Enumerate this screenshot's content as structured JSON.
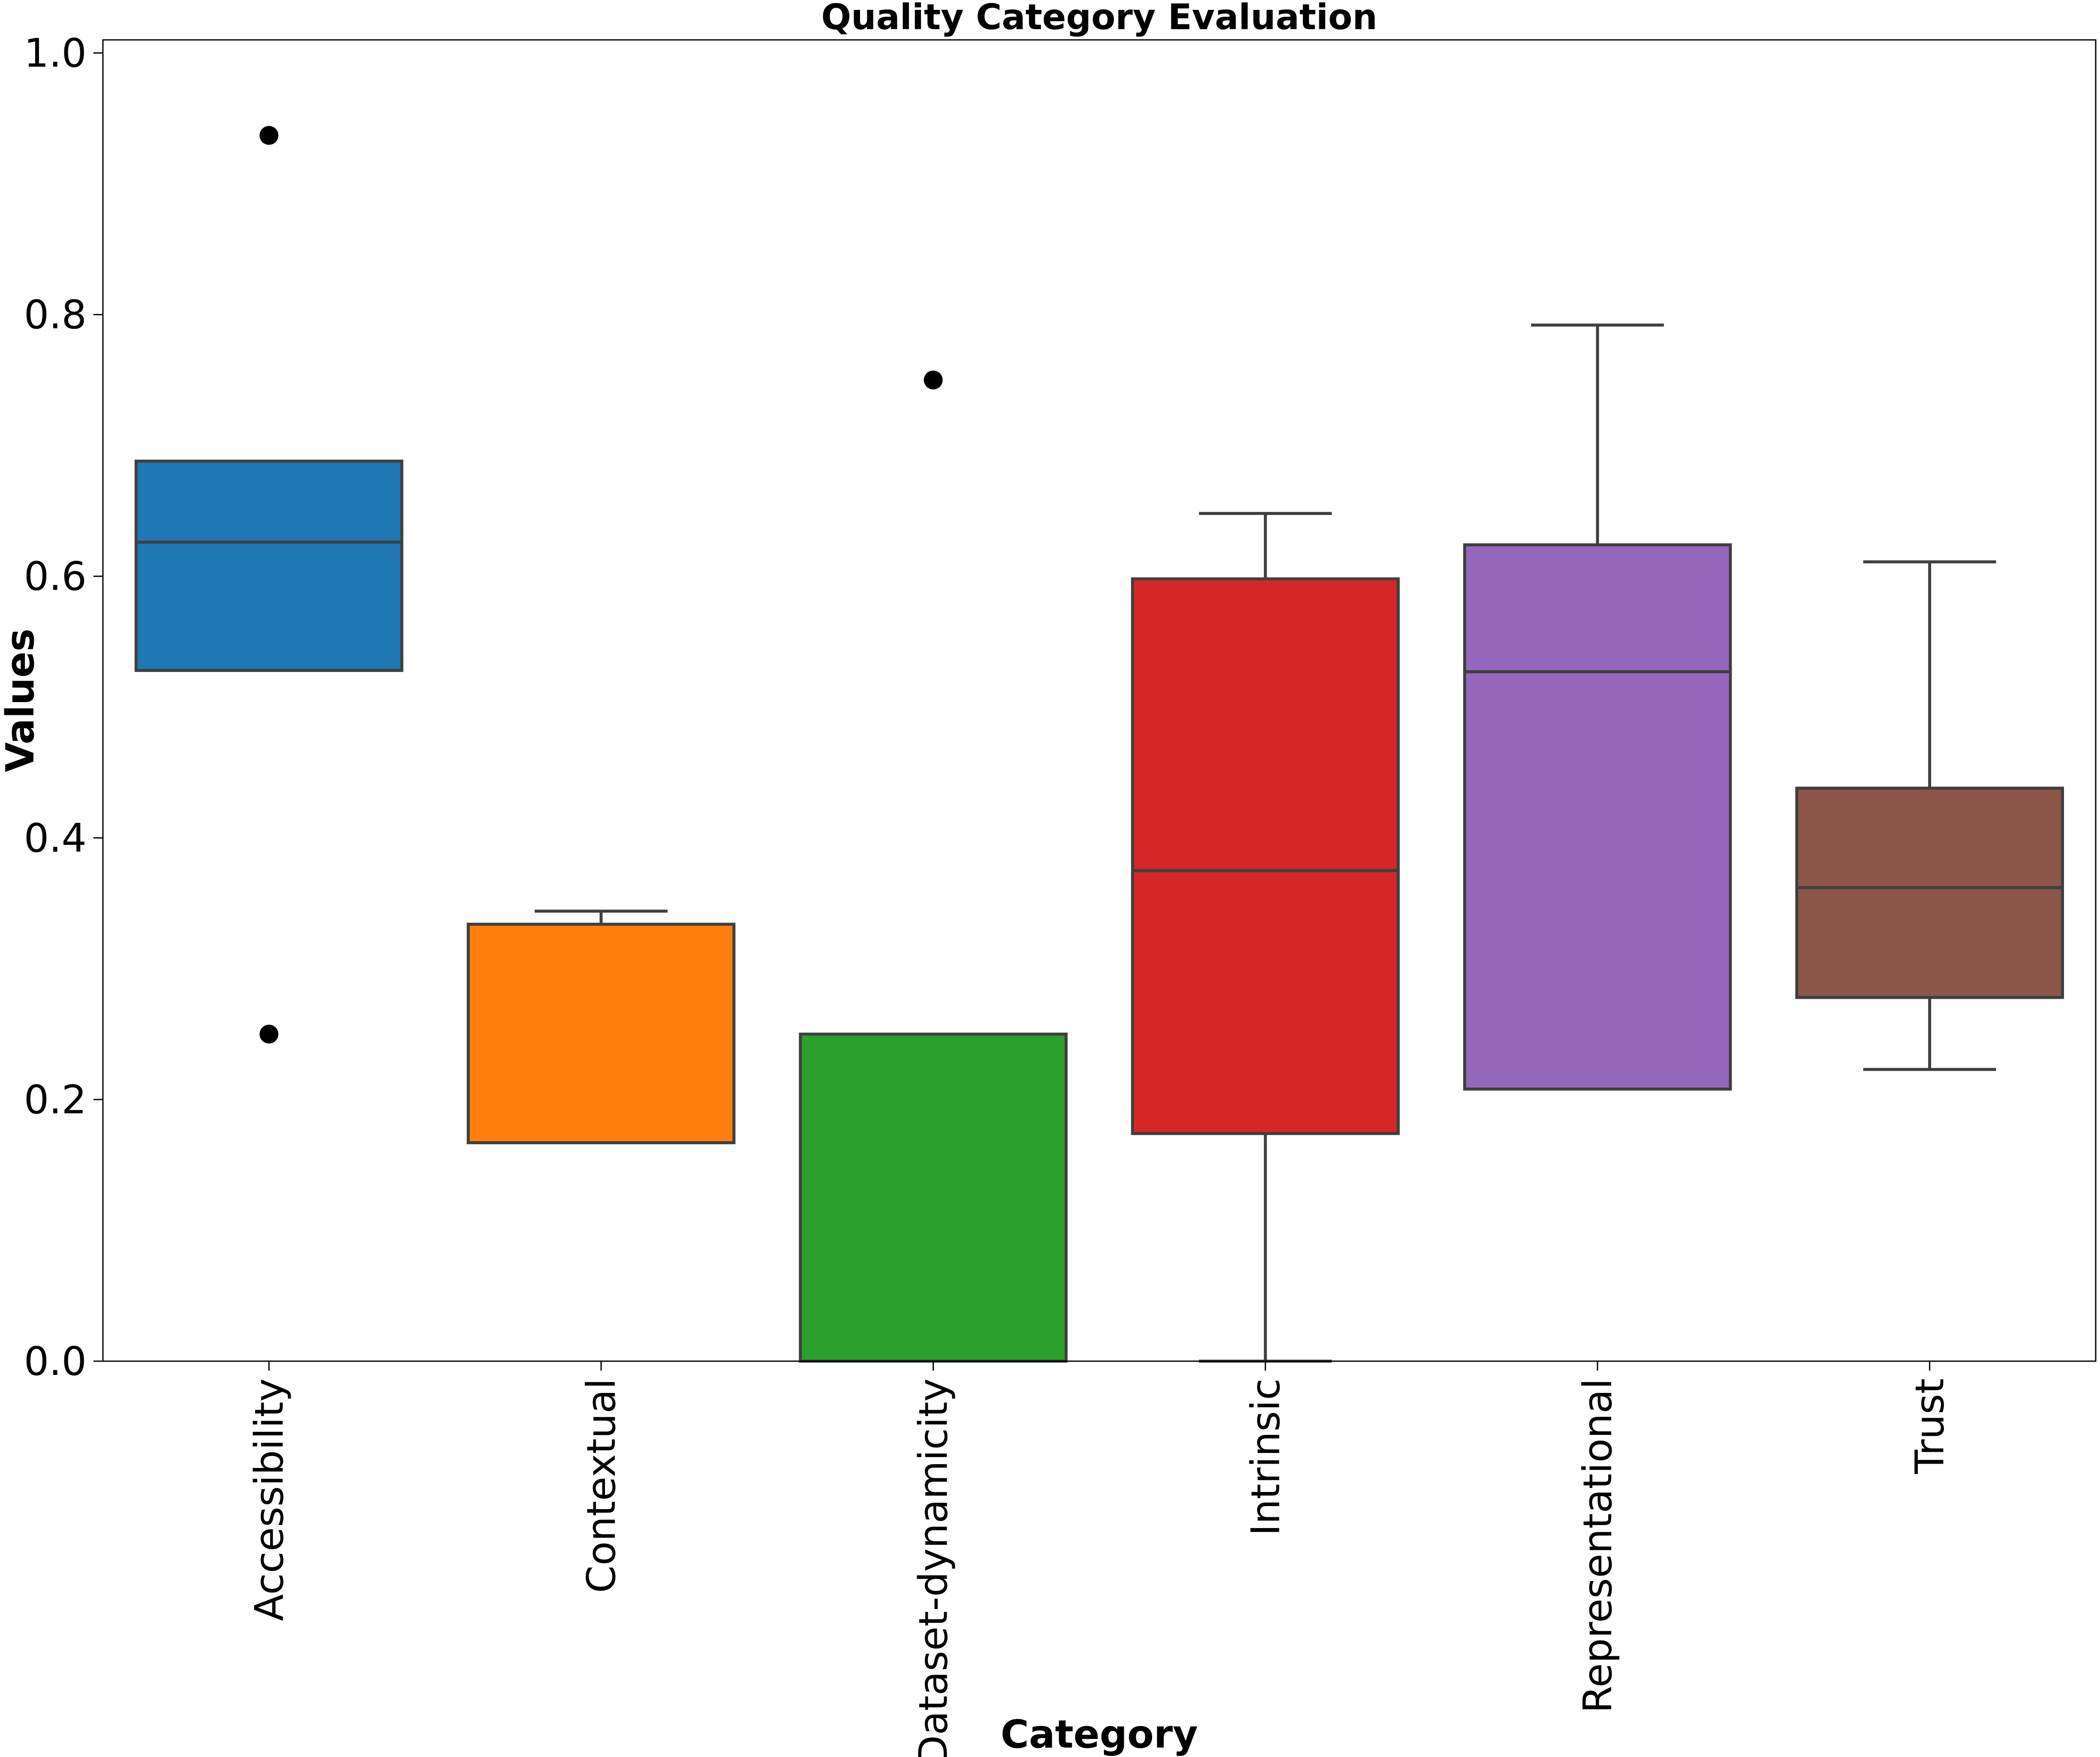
{
  "chart_data": {
    "type": "box",
    "title": "Quality Category Evaluation",
    "xlabel": "Category",
    "ylabel": "Values",
    "ylim": [
      0.0,
      1.01
    ],
    "yticks": [
      "0.0",
      "0.2",
      "0.4",
      "0.6",
      "0.8",
      "1.0"
    ],
    "ytick_values": [
      0.0,
      0.2,
      0.4,
      0.6,
      0.8,
      1.0
    ],
    "grid": false,
    "categories": [
      "Accessibility",
      "Contextual",
      "Dataset-dynamicity",
      "Intrinsic",
      "Representational",
      "Trust"
    ],
    "boxes": [
      {
        "category": "Accessibility",
        "color": "#1f77b4",
        "q1": 0.528,
        "median": 0.626,
        "q3": 0.688,
        "whisker_low": 0.528,
        "whisker_high": 0.688,
        "outliers": [
          0.937,
          0.25
        ]
      },
      {
        "category": "Contextual",
        "color": "#ff7f0e",
        "q1": 0.167,
        "median": 0.167,
        "q3": 0.334,
        "whisker_low": 0.167,
        "whisker_high": 0.344,
        "outliers": []
      },
      {
        "category": "Dataset-dynamicity",
        "color": "#2ca02c",
        "q1": 0.0,
        "median": 0.0,
        "q3": 0.25,
        "whisker_low": 0.0,
        "whisker_high": 0.25,
        "outliers": [
          0.75
        ]
      },
      {
        "category": "Intrinsic",
        "color": "#d62728",
        "q1": 0.174,
        "median": 0.375,
        "q3": 0.598,
        "whisker_low": 0.0,
        "whisker_high": 0.648,
        "outliers": []
      },
      {
        "category": "Representational",
        "color": "#9467bd",
        "q1": 0.208,
        "median": 0.527,
        "q3": 0.624,
        "whisker_low": 0.208,
        "whisker_high": 0.792,
        "outliers": []
      },
      {
        "category": "Trust",
        "color": "#8c564b",
        "q1": 0.278,
        "median": 0.362,
        "q3": 0.438,
        "whisker_low": 0.223,
        "whisker_high": 0.611,
        "outliers": []
      }
    ]
  }
}
